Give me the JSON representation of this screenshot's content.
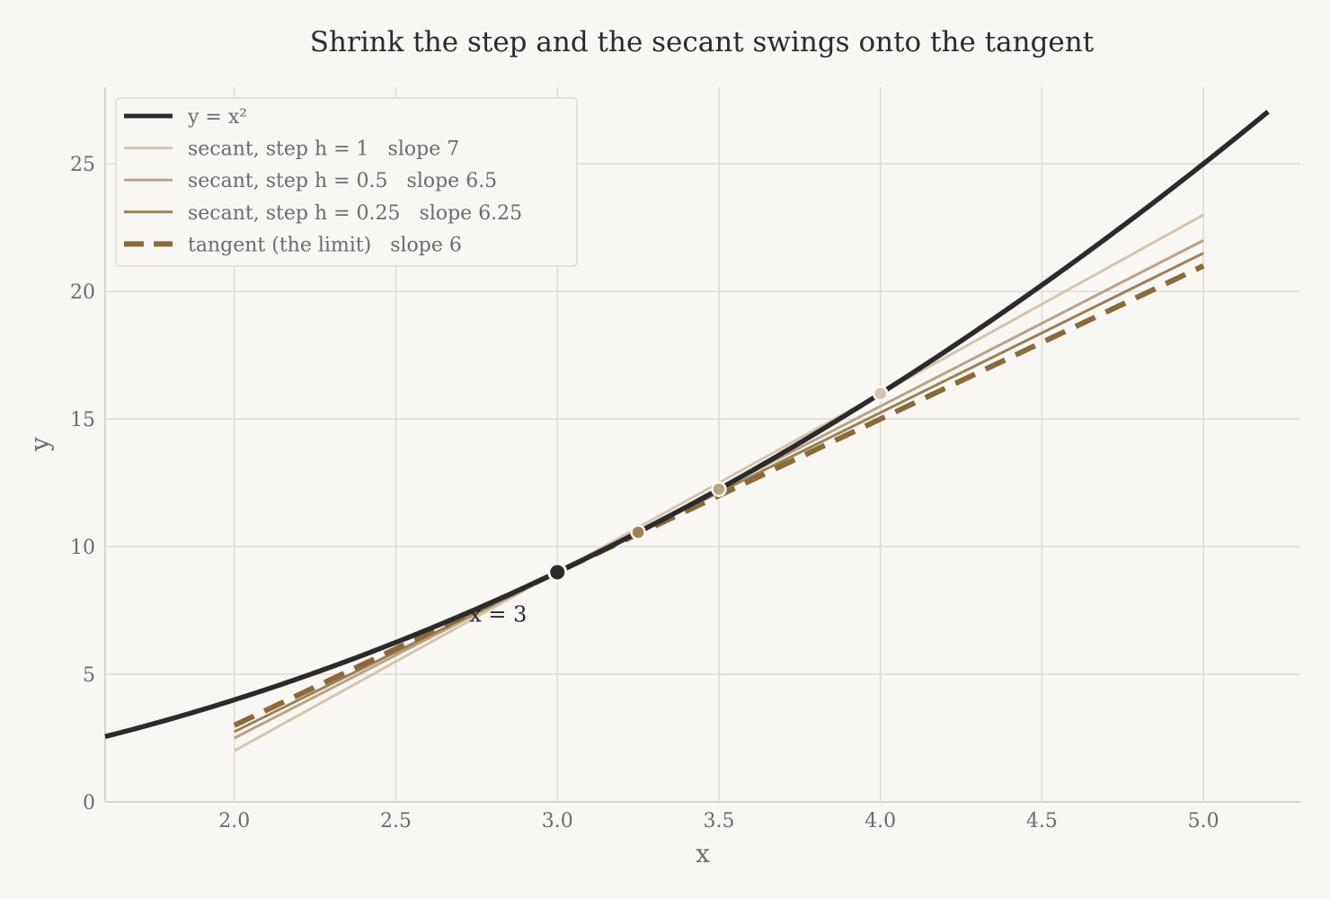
{
  "chart_data": {
    "type": "line",
    "title": "Shrink the step and the secant swings onto the tangent",
    "xlabel": "x",
    "ylabel": "y",
    "xlim": [
      1.6,
      5.3
    ],
    "ylim": [
      0,
      28
    ],
    "x_ticks": [
      2.0,
      2.5,
      3.0,
      3.5,
      4.0,
      4.5,
      5.0
    ],
    "x_tick_labels": [
      "2.0",
      "2.5",
      "3.0",
      "3.5",
      "4.0",
      "4.5",
      "5.0"
    ],
    "y_ticks": [
      0,
      5,
      10,
      15,
      20,
      25
    ],
    "y_tick_labels": [
      "0",
      "5",
      "10",
      "15",
      "20",
      "25"
    ],
    "grid": true,
    "legend_position": "top-left",
    "colors": {
      "background": "#f9f7f4",
      "curve": "#2b2b2b",
      "secant_h1": "#d3c5ae",
      "secant_h05": "#b9a386",
      "secant_h025": "#9c8056",
      "tangent": "#8a6a3a",
      "grid": "#e0ddd6",
      "axis": "#d8d5ce",
      "tick_text": "#6b6b6b",
      "title_text": "#2b2b2b"
    },
    "curve": {
      "name": "y = x²",
      "function": "x^2",
      "x_range": [
        1.6,
        5.2
      ]
    },
    "series": [
      {
        "id": "secant_h1",
        "name": "secant, step h = 1   slope 7",
        "kind": "secant",
        "h": 1,
        "slope": 7,
        "x": [
          2.0,
          5.0
        ],
        "y": [
          2.0,
          23.0
        ],
        "point": [
          4.0,
          16.0
        ]
      },
      {
        "id": "secant_h05",
        "name": "secant, step h = 0.5   slope 6.5",
        "kind": "secant",
        "h": 0.5,
        "slope": 6.5,
        "x": [
          2.0,
          5.0
        ],
        "y": [
          2.5,
          22.0
        ],
        "point": [
          3.5,
          12.25
        ]
      },
      {
        "id": "secant_h025",
        "name": "secant, step h = 0.25   slope 6.25",
        "kind": "secant",
        "h": 0.25,
        "slope": 6.25,
        "x": [
          2.0,
          5.0
        ],
        "y": [
          2.75,
          21.5
        ],
        "point": [
          3.25,
          10.5625
        ]
      },
      {
        "id": "tangent",
        "name": "tangent (the limit)   slope 6",
        "kind": "tangent",
        "slope": 6,
        "x": [
          2.0,
          5.0
        ],
        "y": [
          3.0,
          21.0
        ]
      }
    ],
    "base_point": {
      "x": 3,
      "y": 9,
      "label": "x = 3"
    }
  }
}
